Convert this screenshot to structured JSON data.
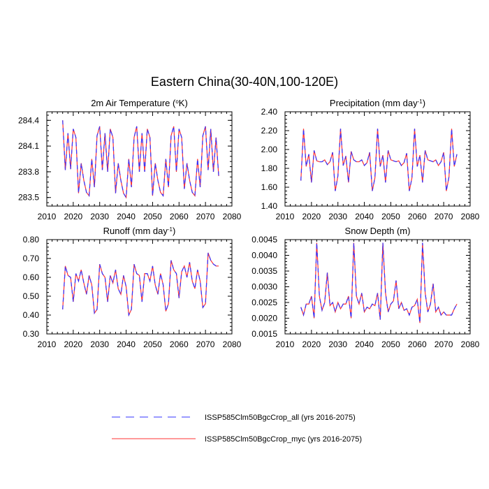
{
  "title": "Eastern China(30-40N,100-120E)",
  "legend": {
    "items": [
      {
        "label": "ISSP585Clm50BgcCrop_all (yrs 2016-2075)",
        "color": "#3333ff",
        "style": "dashed"
      },
      {
        "label": "ISSP585Clm50BgcCrop_myc (yrs 2016-2075)",
        "color": "#ff3333",
        "style": "solid"
      }
    ]
  },
  "chart_data": [
    {
      "type": "line",
      "title": "2m Air Temperature",
      "units": "K",
      "units_prefix": "o",
      "xlim": [
        2010,
        2080
      ],
      "ylim": [
        283.4,
        284.5
      ],
      "xticks": [
        2010,
        2020,
        2030,
        2040,
        2050,
        2060,
        2070,
        2080
      ],
      "yticks": [
        "283.5",
        "283.8",
        "284.1",
        "284.4"
      ],
      "x_start": 2016,
      "series": [
        {
          "values": [
            284.4,
            283.82,
            284.25,
            283.83,
            284.3,
            284.2,
            283.55,
            283.9,
            283.7,
            283.56,
            283.52,
            283.95,
            283.62,
            284.22,
            284.33,
            283.82,
            284.25,
            283.8,
            284.3,
            284.2,
            283.55,
            283.9,
            283.7,
            283.55,
            283.5,
            283.95,
            283.62,
            284.2,
            284.33,
            283.8,
            284.25,
            283.8,
            284.3,
            284.2,
            283.52,
            283.9,
            283.7,
            283.56,
            283.52,
            283.95,
            283.62,
            284.22,
            284.33,
            283.8,
            284.3,
            284.2,
            283.6,
            283.9,
            283.7,
            283.56,
            283.52,
            283.95,
            283.62,
            284.22,
            284.33,
            283.82,
            284.3,
            283.8,
            284.2,
            283.75
          ]
        },
        {
          "values": [
            284.4,
            283.82,
            284.25,
            283.83,
            284.3,
            284.2,
            283.55,
            283.9,
            283.7,
            283.56,
            283.52,
            283.95,
            283.62,
            284.22,
            284.33,
            283.82,
            284.25,
            283.8,
            284.3,
            284.2,
            283.55,
            283.9,
            283.7,
            283.55,
            283.5,
            283.95,
            283.62,
            284.2,
            284.33,
            283.8,
            284.25,
            283.8,
            284.3,
            284.2,
            283.52,
            283.9,
            283.7,
            283.56,
            283.52,
            283.95,
            283.62,
            284.22,
            284.33,
            283.8,
            284.3,
            284.2,
            283.6,
            283.9,
            283.7,
            283.56,
            283.52,
            283.95,
            283.62,
            284.22,
            284.33,
            283.82,
            284.3,
            283.8,
            284.2,
            283.75
          ]
        }
      ]
    },
    {
      "type": "line",
      "title": "Precipitation",
      "units": "mm day",
      "units_exp": "-1",
      "xlim": [
        2010,
        2080
      ],
      "ylim": [
        1.4,
        2.4
      ],
      "xticks": [
        2010,
        2020,
        2030,
        2040,
        2050,
        2060,
        2070,
        2080
      ],
      "yticks": [
        "1.40",
        "1.60",
        "1.80",
        "2.00",
        "2.20",
        "2.40"
      ],
      "x_start": 2016,
      "series": [
        {
          "values": [
            1.67,
            2.22,
            1.82,
            1.95,
            1.65,
            1.99,
            1.88,
            1.87,
            1.87,
            1.89,
            1.84,
            1.87,
            1.97,
            1.56,
            1.72,
            2.22,
            1.83,
            1.93,
            1.65,
            1.98,
            1.89,
            1.87,
            1.87,
            1.89,
            1.83,
            1.86,
            1.97,
            1.56,
            1.7,
            2.22,
            1.82,
            1.94,
            1.65,
            1.99,
            1.89,
            1.88,
            1.87,
            1.88,
            1.83,
            1.86,
            1.96,
            1.56,
            1.7,
            2.22,
            1.82,
            1.94,
            1.65,
            1.99,
            1.89,
            1.88,
            1.87,
            1.89,
            1.83,
            1.87,
            1.97,
            1.56,
            1.71,
            2.22,
            1.82,
            1.95
          ]
        },
        {
          "values": [
            1.67,
            2.22,
            1.82,
            1.95,
            1.65,
            1.99,
            1.88,
            1.87,
            1.87,
            1.89,
            1.84,
            1.87,
            1.97,
            1.56,
            1.72,
            2.22,
            1.83,
            1.93,
            1.65,
            1.98,
            1.89,
            1.87,
            1.87,
            1.89,
            1.83,
            1.86,
            1.97,
            1.56,
            1.7,
            2.22,
            1.82,
            1.94,
            1.65,
            1.99,
            1.89,
            1.88,
            1.87,
            1.88,
            1.83,
            1.86,
            1.96,
            1.56,
            1.7,
            2.22,
            1.82,
            1.94,
            1.65,
            1.99,
            1.89,
            1.88,
            1.87,
            1.89,
            1.83,
            1.87,
            1.97,
            1.56,
            1.71,
            2.22,
            1.82,
            1.95
          ]
        }
      ]
    },
    {
      "type": "line",
      "title": "Runoff",
      "units": "mm day",
      "units_exp": "-1",
      "xlim": [
        2010,
        2080
      ],
      "ylim": [
        0.3,
        0.8
      ],
      "xticks": [
        2010,
        2020,
        2030,
        2040,
        2050,
        2060,
        2070,
        2080
      ],
      "yticks": [
        "0.30",
        "0.40",
        "0.50",
        "0.60",
        "0.70",
        "0.80"
      ],
      "x_start": 2016,
      "series": [
        {
          "values": [
            0.43,
            0.66,
            0.61,
            0.6,
            0.47,
            0.62,
            0.58,
            0.64,
            0.57,
            0.51,
            0.61,
            0.56,
            0.41,
            0.43,
            0.67,
            0.62,
            0.6,
            0.47,
            0.61,
            0.57,
            0.64,
            0.54,
            0.51,
            0.61,
            0.55,
            0.4,
            0.43,
            0.67,
            0.62,
            0.61,
            0.47,
            0.62,
            0.62,
            0.58,
            0.66,
            0.56,
            0.51,
            0.62,
            0.56,
            0.42,
            0.46,
            0.69,
            0.64,
            0.62,
            0.49,
            0.63,
            0.66,
            0.6,
            0.68,
            0.58,
            0.54,
            0.64,
            0.58,
            0.44,
            0.46,
            0.73,
            0.69,
            0.67,
            0.66,
            0.66
          ]
        },
        {
          "values": [
            0.43,
            0.66,
            0.61,
            0.6,
            0.47,
            0.62,
            0.58,
            0.64,
            0.57,
            0.51,
            0.61,
            0.56,
            0.41,
            0.43,
            0.67,
            0.62,
            0.6,
            0.47,
            0.61,
            0.57,
            0.64,
            0.54,
            0.51,
            0.61,
            0.55,
            0.4,
            0.43,
            0.67,
            0.62,
            0.61,
            0.47,
            0.62,
            0.62,
            0.58,
            0.66,
            0.56,
            0.51,
            0.62,
            0.56,
            0.42,
            0.46,
            0.69,
            0.64,
            0.62,
            0.49,
            0.63,
            0.66,
            0.6,
            0.68,
            0.58,
            0.54,
            0.64,
            0.58,
            0.44,
            0.46,
            0.73,
            0.69,
            0.67,
            0.66,
            0.66
          ]
        }
      ]
    },
    {
      "type": "line",
      "title": "Snow Depth",
      "units": "m",
      "xlim": [
        2010,
        2080
      ],
      "ylim": [
        0.0015,
        0.0045
      ],
      "xticks": [
        2010,
        2020,
        2030,
        2040,
        2050,
        2060,
        2070,
        2080
      ],
      "yticks": [
        "0.0015",
        "0.0020",
        "0.0025",
        "0.0030",
        "0.0035",
        "0.0040",
        "0.0045"
      ],
      "x_start": 2016,
      "series": [
        {
          "values": [
            0.00235,
            0.0021,
            0.00245,
            0.00245,
            0.0027,
            0.002,
            0.0044,
            0.0027,
            0.00225,
            0.0025,
            0.00345,
            0.0024,
            0.0025,
            0.0022,
            0.0025,
            0.0023,
            0.00245,
            0.00245,
            0.0027,
            0.002,
            0.0044,
            0.0027,
            0.00245,
            0.0028,
            0.0022,
            0.00235,
            0.0023,
            0.00245,
            0.0024,
            0.0028,
            0.00195,
            0.0044,
            0.0028,
            0.0022,
            0.00245,
            0.00255,
            0.0032,
            0.0023,
            0.0025,
            0.00225,
            0.0023,
            0.0021,
            0.00235,
            0.0024,
            0.0026,
            0.00185,
            0.0044,
            0.0028,
            0.0022,
            0.00245,
            0.0031,
            0.0022,
            0.00235,
            0.0021,
            0.0022,
            0.0021,
            0.0021,
            0.0021,
            0.0023,
            0.00245
          ]
        },
        {
          "values": [
            0.00235,
            0.0021,
            0.00245,
            0.00245,
            0.0027,
            0.002,
            0.0044,
            0.0027,
            0.00225,
            0.0025,
            0.00345,
            0.0024,
            0.0025,
            0.0022,
            0.0025,
            0.0023,
            0.00245,
            0.00245,
            0.0027,
            0.002,
            0.0044,
            0.0027,
            0.00245,
            0.0028,
            0.0022,
            0.00235,
            0.0023,
            0.00245,
            0.0024,
            0.0028,
            0.00195,
            0.0044,
            0.0028,
            0.0022,
            0.00245,
            0.00255,
            0.0032,
            0.0023,
            0.0025,
            0.00225,
            0.0023,
            0.0021,
            0.00235,
            0.0024,
            0.0026,
            0.00185,
            0.0044,
            0.0028,
            0.0022,
            0.00245,
            0.0031,
            0.0022,
            0.00235,
            0.0021,
            0.0022,
            0.0021,
            0.0021,
            0.0021,
            0.0023,
            0.00245
          ]
        }
      ]
    }
  ]
}
